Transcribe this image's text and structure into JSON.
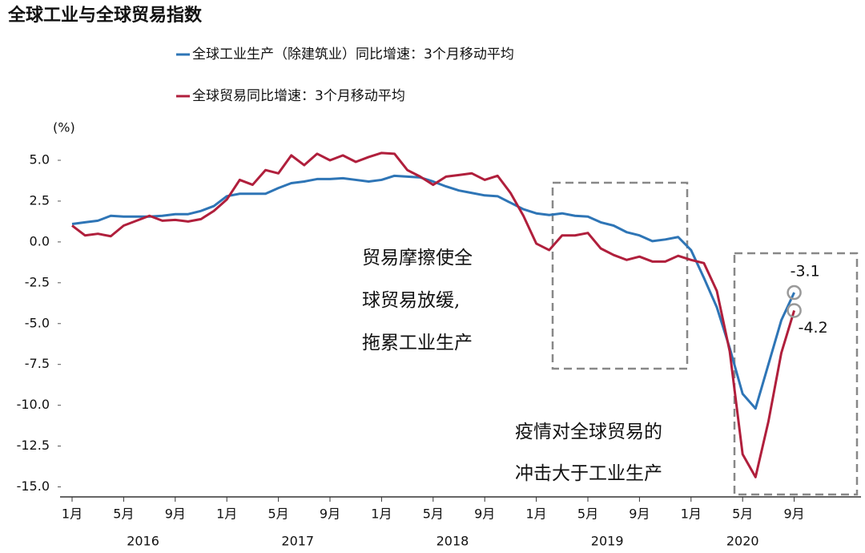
{
  "chart_data": {
    "type": "line",
    "title": "全球工业与全球贸易指数",
    "y_label": "(%)",
    "categories": [
      "1月",
      null,
      null,
      null,
      "5月",
      null,
      null,
      null,
      "9月",
      null,
      null,
      null,
      "1月",
      null,
      null,
      null,
      "5月",
      null,
      null,
      null,
      "9月",
      null,
      null,
      null,
      "1月",
      null,
      null,
      null,
      "5月",
      null,
      null,
      null,
      "9月",
      null,
      null,
      null,
      "1月",
      null,
      null,
      null,
      "5月",
      null,
      null,
      null,
      "9月",
      null,
      null,
      null,
      "1月",
      null,
      null,
      null,
      "5月",
      null,
      null,
      null,
      "9月"
    ],
    "years": [
      "2016",
      "2017",
      "2018",
      "2019",
      "2020"
    ],
    "ylim": [
      -15.5,
      5.5
    ],
    "yticks": [
      {
        "value": 5,
        "label": "5.0"
      },
      2.5,
      {
        "value": 0,
        "label": "0.0"
      },
      -2.5,
      {
        "value": -5,
        "label": "-5.0"
      },
      -7.5,
      {
        "value": -10,
        "label": "-10.0"
      },
      -12.5,
      {
        "value": -15,
        "label": "-15.0"
      }
    ],
    "series": [
      {
        "name": "全球工业生产（除建筑业）同比增速：3个月移动平均",
        "color": "#2e75b6",
        "values": [
          1.1,
          1.2,
          1.3,
          1.6,
          1.55,
          1.55,
          1.55,
          1.6,
          1.7,
          1.7,
          1.9,
          2.2,
          2.8,
          2.95,
          2.95,
          2.95,
          3.3,
          3.6,
          3.7,
          3.85,
          3.85,
          3.9,
          3.8,
          3.7,
          3.8,
          4.05,
          4.0,
          3.95,
          3.7,
          3.4,
          3.15,
          3.0,
          2.85,
          2.8,
          2.4,
          2.0,
          1.75,
          1.65,
          1.75,
          1.6,
          1.55,
          1.2,
          1.0,
          0.6,
          0.4,
          0.05,
          0.15,
          0.3,
          -0.5,
          -2.2,
          -4.0,
          -6.5,
          -9.3,
          -10.2,
          -7.5,
          -4.8,
          -3.1
        ]
      },
      {
        "name": "全球贸易同比增速：3个月移动平均",
        "color": "#b01f3c",
        "values": [
          1.0,
          0.4,
          0.5,
          0.35,
          1.0,
          1.3,
          1.6,
          1.3,
          1.35,
          1.25,
          1.4,
          1.9,
          2.6,
          3.8,
          3.5,
          4.4,
          4.2,
          5.3,
          4.7,
          5.4,
          5.0,
          5.3,
          4.9,
          5.2,
          5.45,
          5.4,
          4.4,
          4.0,
          3.5,
          4.0,
          4.1,
          4.2,
          3.8,
          4.05,
          3.0,
          1.6,
          -0.1,
          -0.5,
          0.4,
          0.4,
          0.55,
          -0.4,
          -0.8,
          -1.1,
          -0.9,
          -1.2,
          -1.2,
          -0.85,
          -1.1,
          -1.3,
          -3.0,
          -6.7,
          -13.0,
          -14.4,
          -11.0,
          -6.8,
          -4.2
        ]
      }
    ],
    "annotations": [
      {
        "lines": [
          "贸易摩擦使全",
          "球贸易放缓,",
          "拖累工业生产"
        ]
      },
      {
        "lines": [
          "疫情对全球贸易的",
          "冲击大于工业生产"
        ]
      }
    ]
  }
}
